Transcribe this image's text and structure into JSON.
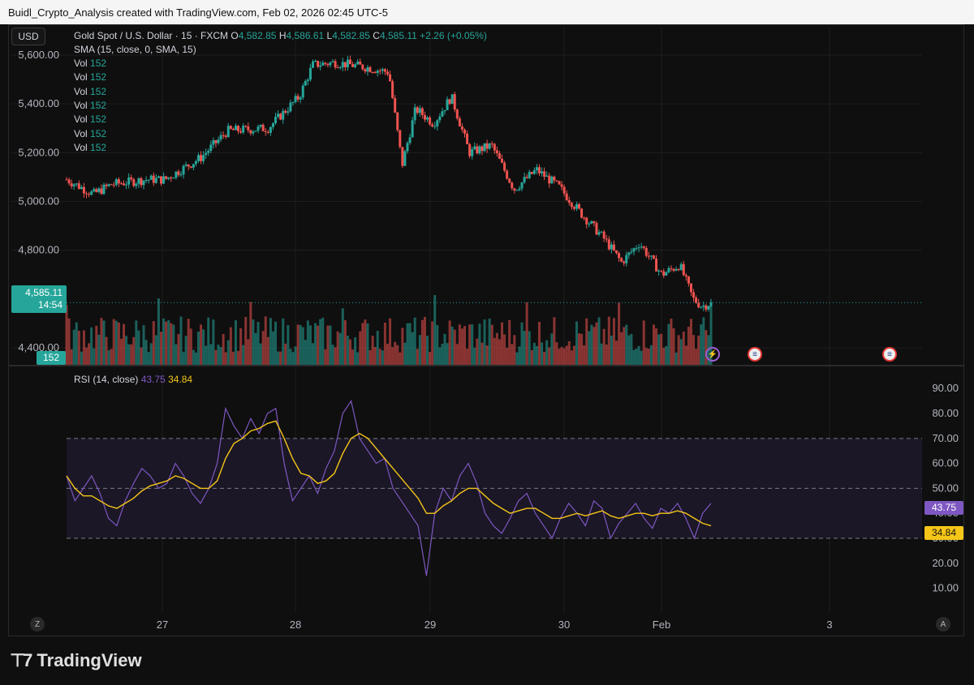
{
  "header": {
    "attribution": "Buidl_Crypto_Analysis created with TradingView.com, Feb 02, 2026 02:45 UTC-5"
  },
  "toolbar": {
    "currency": "USD"
  },
  "symbol": {
    "name": "Gold Spot / U.S. Dollar · 15 · FXCM",
    "o_label": "O",
    "o_value": "4,582.85",
    "h_label": "H",
    "h_value": "4,586.61",
    "l_label": "L",
    "l_value": "4,582.85",
    "c_label": "C",
    "c_value": "4,585.11",
    "change": "+2.26 (+0.05%)"
  },
  "indicators": {
    "sma": "SMA (15, close, 0, SMA, 15)",
    "vol_rows": [
      {
        "label": "Vol",
        "value": "152"
      },
      {
        "label": "Vol",
        "value": "152"
      },
      {
        "label": "Vol",
        "value": "152"
      },
      {
        "label": "Vol",
        "value": "152"
      },
      {
        "label": "Vol",
        "value": "152"
      },
      {
        "label": "Vol",
        "value": "152"
      },
      {
        "label": "Vol",
        "value": "152"
      }
    ],
    "rsi_label": "RSI (14, close)",
    "rsi_value": "43.75",
    "rsi_ma_value": "34.84"
  },
  "price_tag": {
    "price": "4,585.11",
    "countdown": "14:54"
  },
  "volume_tag": "152",
  "colors": {
    "up": "#26a69a",
    "down": "#ef5350",
    "rsi": "#7e57c2",
    "rsi_ma": "#f5c518",
    "rsi_band": "#1b1726"
  },
  "icons": {
    "event_lightning": "lightning-icon",
    "event_flag_1": "us-flag-icon",
    "event_flag_2": "us-flag-icon"
  },
  "bottom_buttons": {
    "left": "Z",
    "right": "A"
  },
  "footer": {
    "brand": "TradingView"
  },
  "chart_data": [
    {
      "type": "candlestick",
      "title": "Gold Spot / U.S. Dollar · 15 · FXCM",
      "y_ticks": [
        "5,600.00",
        "5,400.00",
        "5,200.00",
        "5,000.00",
        "4,800.00",
        "4,400.00"
      ],
      "ylim": [
        4330,
        5640
      ],
      "x_ticks": [
        "27",
        "28",
        "29",
        "30",
        "Feb",
        "3"
      ],
      "trend_points": [
        {
          "x": 0.0,
          "y": 5090
        },
        {
          "x": 0.06,
          "y": 5030
        },
        {
          "x": 0.1,
          "y": 5070
        },
        {
          "x": 0.18,
          "y": 5090
        },
        {
          "x": 0.22,
          "y": 5090
        },
        {
          "x": 0.3,
          "y": 5180
        },
        {
          "x": 0.36,
          "y": 5290
        },
        {
          "x": 0.45,
          "y": 5300
        },
        {
          "x": 0.52,
          "y": 5430
        },
        {
          "x": 0.55,
          "y": 5560
        },
        {
          "x": 0.6,
          "y": 5570
        },
        {
          "x": 0.67,
          "y": 5550
        },
        {
          "x": 0.72,
          "y": 5530
        },
        {
          "x": 0.75,
          "y": 5150
        },
        {
          "x": 0.78,
          "y": 5380
        },
        {
          "x": 0.82,
          "y": 5320
        },
        {
          "x": 0.86,
          "y": 5430
        },
        {
          "x": 0.9,
          "y": 5200
        },
        {
          "x": 0.95,
          "y": 5230
        },
        {
          "x": 1.0,
          "y": 5050
        },
        {
          "x": 1.05,
          "y": 5130
        },
        {
          "x": 1.1,
          "y": 5060
        },
        {
          "x": 1.15,
          "y": 4950
        },
        {
          "x": 1.2,
          "y": 4850
        },
        {
          "x": 1.24,
          "y": 4750
        },
        {
          "x": 1.28,
          "y": 4830
        },
        {
          "x": 1.33,
          "y": 4700
        },
        {
          "x": 1.37,
          "y": 4740
        },
        {
          "x": 1.4,
          "y": 4600
        },
        {
          "x": 1.42,
          "y": 4570
        },
        {
          "x": 1.44,
          "y": 4585
        }
      ],
      "last_price": 4585.11
    },
    {
      "type": "line",
      "title": "RSI (14, close)",
      "y_ticks": [
        "90.00",
        "80.00",
        "70.00",
        "60.00",
        "50.00",
        "40.00",
        "30.00",
        "20.00",
        "10.00"
      ],
      "ylim": [
        5,
        93
      ],
      "bands": [
        70,
        50,
        30
      ],
      "series": [
        {
          "name": "RSI",
          "last": 43.75,
          "values": [
            55,
            45,
            50,
            55,
            48,
            38,
            35,
            45,
            52,
            58,
            55,
            50,
            52,
            60,
            55,
            48,
            44,
            50,
            60,
            82,
            75,
            70,
            78,
            72,
            80,
            82,
            60,
            45,
            50,
            55,
            48,
            58,
            65,
            80,
            85,
            70,
            65,
            60,
            62,
            50,
            45,
            40,
            35,
            15,
            40,
            50,
            45,
            55,
            60,
            52,
            40,
            35,
            32,
            38,
            45,
            48,
            40,
            35,
            30,
            38,
            44,
            40,
            35,
            45,
            42,
            30,
            36,
            40,
            44,
            38,
            34,
            42,
            40,
            44,
            38,
            30,
            40,
            44
          ]
        },
        {
          "name": "RSI MA",
          "last": 34.84,
          "values": [
            55,
            50,
            47,
            47,
            45,
            43,
            42,
            44,
            46,
            49,
            51,
            52,
            53,
            55,
            54,
            52,
            50,
            50,
            53,
            62,
            68,
            70,
            73,
            74,
            76,
            77,
            70,
            62,
            56,
            55,
            52,
            53,
            56,
            64,
            70,
            72,
            70,
            66,
            62,
            58,
            54,
            50,
            46,
            40,
            40,
            43,
            45,
            48,
            50,
            50,
            47,
            44,
            42,
            40,
            41,
            42,
            42,
            40,
            38,
            38,
            39,
            40,
            39,
            40,
            41,
            39,
            38,
            39,
            40,
            40,
            39,
            40,
            40,
            41,
            40,
            38,
            36,
            35
          ]
        }
      ]
    }
  ]
}
